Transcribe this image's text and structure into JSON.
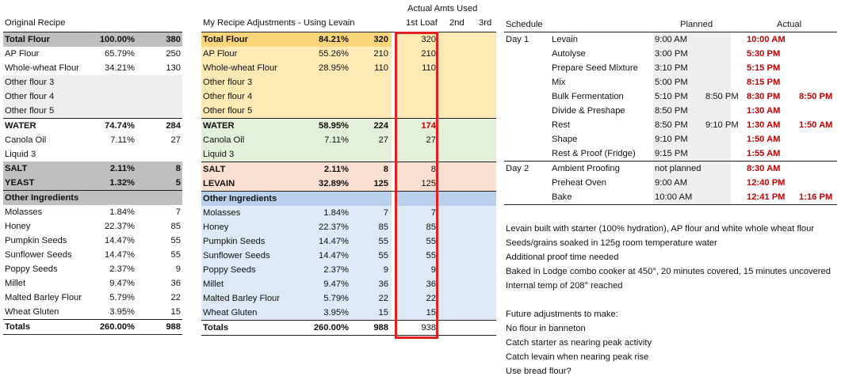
{
  "original": {
    "title": "Original Recipe",
    "rows": [
      {
        "name": "Total Flour",
        "pct": "100.00%",
        "amt": "380",
        "style": "header-gray"
      },
      {
        "name": "AP Flour",
        "pct": "65.79%",
        "amt": "250",
        "style": "normal"
      },
      {
        "name": "Whole-wheat Flour",
        "pct": "34.21%",
        "amt": "130",
        "style": "normal"
      },
      {
        "name": "Other flour 3",
        "pct": "",
        "amt": "",
        "style": "light"
      },
      {
        "name": "Other flour 4",
        "pct": "",
        "amt": "",
        "style": "light"
      },
      {
        "name": "Other flour 5",
        "pct": "",
        "amt": "",
        "style": "light"
      },
      {
        "name": "WATER",
        "pct": "74.74%",
        "amt": "284",
        "style": "bold"
      },
      {
        "name": "Canola Oil",
        "pct": "7.11%",
        "amt": "27",
        "style": "normal"
      },
      {
        "name": "Liquid 3",
        "pct": "",
        "amt": "",
        "style": "normal"
      },
      {
        "name": "SALT",
        "pct": "2.11%",
        "amt": "8",
        "style": "section-gray"
      },
      {
        "name": "YEAST",
        "pct": "1.32%",
        "amt": "5",
        "style": "section-gray"
      },
      {
        "name": "Other Ingredients",
        "pct": "",
        "amt": "",
        "style": "header-gray"
      },
      {
        "name": "Molasses",
        "pct": "1.84%",
        "amt": "7",
        "style": "normal"
      },
      {
        "name": "Honey",
        "pct": "22.37%",
        "amt": "85",
        "style": "normal"
      },
      {
        "name": "Pumpkin Seeds",
        "pct": "14.47%",
        "amt": "55",
        "style": "normal"
      },
      {
        "name": "Sunflower Seeds",
        "pct": "14.47%",
        "amt": "55",
        "style": "normal"
      },
      {
        "name": "Poppy Seeds",
        "pct": "2.37%",
        "amt": "9",
        "style": "normal"
      },
      {
        "name": "Millet",
        "pct": "9.47%",
        "amt": "36",
        "style": "normal"
      },
      {
        "name": "Malted Barley Flour",
        "pct": "5.79%",
        "amt": "22",
        "style": "normal"
      },
      {
        "name": "Wheat Gluten",
        "pct": "3.95%",
        "amt": "15",
        "style": "normal"
      },
      {
        "name": "Totals",
        "pct": "260.00%",
        "amt": "988",
        "style": "total"
      }
    ]
  },
  "adjusted": {
    "title": "My Recipe Adjustments - Using Levain",
    "actual_title": "Actual Amts Used",
    "loaf_headers": [
      "1st Loaf",
      "2nd",
      "3rd"
    ],
    "rows": [
      {
        "name": "Total Flour",
        "pct": "84.21%",
        "amt": "320",
        "actual": "320",
        "band": "flour",
        "style": "header"
      },
      {
        "name": "AP Flour",
        "pct": "55.26%",
        "amt": "210",
        "actual": "210",
        "band": "flour",
        "style": "normal"
      },
      {
        "name": "Whole-wheat Flour",
        "pct": "28.95%",
        "amt": "110",
        "actual": "110",
        "band": "flour",
        "style": "normal"
      },
      {
        "name": "Other flour 3",
        "pct": "",
        "amt": "",
        "actual": "",
        "band": "flour",
        "style": "normal"
      },
      {
        "name": "Other flour 4",
        "pct": "",
        "amt": "",
        "actual": "",
        "band": "flour",
        "style": "normal"
      },
      {
        "name": "Other flour 5",
        "pct": "",
        "amt": "",
        "actual": "",
        "band": "flour",
        "style": "normal"
      },
      {
        "name": "WATER",
        "pct": "58.95%",
        "amt": "224",
        "actual": "174",
        "actual_red": true,
        "band": "water",
        "style": "bold"
      },
      {
        "name": "Canola Oil",
        "pct": "7.11%",
        "amt": "27",
        "actual": "27",
        "band": "water",
        "style": "normal"
      },
      {
        "name": "Liquid 3",
        "pct": "",
        "amt": "",
        "actual": "",
        "band": "water",
        "style": "normal"
      },
      {
        "name": "SALT",
        "pct": "2.11%",
        "amt": "8",
        "actual": "8",
        "band": "salt",
        "style": "section"
      },
      {
        "name": "LEVAIN",
        "pct": "32.89%",
        "amt": "125",
        "actual": "125",
        "band": "salt",
        "style": "section"
      },
      {
        "name": "Other Ingredients",
        "pct": "",
        "amt": "",
        "actual": "",
        "band": "otherhead",
        "style": "header"
      },
      {
        "name": "Molasses",
        "pct": "1.84%",
        "amt": "7",
        "actual": "7",
        "band": "other",
        "style": "normal"
      },
      {
        "name": "Honey",
        "pct": "22.37%",
        "amt": "85",
        "actual": "85",
        "band": "other",
        "style": "normal"
      },
      {
        "name": "Pumpkin Seeds",
        "pct": "14.47%",
        "amt": "55",
        "actual": "55",
        "band": "other",
        "style": "normal"
      },
      {
        "name": "Sunflower Seeds",
        "pct": "14.47%",
        "amt": "55",
        "actual": "55",
        "band": "other",
        "style": "normal"
      },
      {
        "name": "Poppy Seeds",
        "pct": "2.37%",
        "amt": "9",
        "actual": "9",
        "band": "other",
        "style": "normal"
      },
      {
        "name": "Millet",
        "pct": "9.47%",
        "amt": "36",
        "actual": "36",
        "band": "other",
        "style": "normal"
      },
      {
        "name": "Malted Barley Flour",
        "pct": "5.79%",
        "amt": "22",
        "actual": "22",
        "band": "other",
        "style": "normal"
      },
      {
        "name": "Wheat Gluten",
        "pct": "3.95%",
        "amt": "15",
        "actual": "15",
        "band": "other",
        "style": "normal"
      },
      {
        "name": "Totals",
        "pct": "260.00%",
        "amt": "988",
        "actual": "938",
        "band": "total",
        "style": "total"
      }
    ]
  },
  "schedule": {
    "title": "Schedule",
    "planned_label": "Planned",
    "actual_label": "Actual",
    "rows": [
      {
        "day": "Day 1",
        "step": "Levain",
        "planned": "9:00 AM",
        "planned2": "",
        "actual": "10:00 AM",
        "actual2": ""
      },
      {
        "day": "",
        "step": "Autolyse",
        "planned": "3:00 PM",
        "planned2": "",
        "actual": "5:30 PM",
        "actual2": ""
      },
      {
        "day": "",
        "step": "Prepare Seed Mixture",
        "planned": "3:10 PM",
        "planned2": "",
        "actual": "5:15 PM",
        "actual2": ""
      },
      {
        "day": "",
        "step": "Mix",
        "planned": "5:00 PM",
        "planned2": "",
        "actual": "8:15 PM",
        "actual2": ""
      },
      {
        "day": "",
        "step": "Bulk Fermentation",
        "planned": "5:10 PM",
        "planned2": "8:50 PM",
        "actual": "8:30 PM",
        "actual2": "8:50 PM"
      },
      {
        "day": "",
        "step": "Divide & Preshape",
        "planned": "8:50 PM",
        "planned2": "",
        "actual": "1:30 AM",
        "actual2": ""
      },
      {
        "day": "",
        "step": "Rest",
        "planned": "8:50 PM",
        "planned2": "9:10 PM",
        "actual": "1:30 AM",
        "actual2": "1:50 AM"
      },
      {
        "day": "",
        "step": "Shape",
        "planned": "9:10 PM",
        "planned2": "",
        "actual": "1:50 AM",
        "actual2": ""
      },
      {
        "day": "",
        "step": "Rest & Proof (Fridge)",
        "planned": "9:15 PM",
        "planned2": "",
        "actual": "1:55 AM",
        "actual2": ""
      },
      {
        "day": "Day 2",
        "step": "Ambient Proofing",
        "planned": "not planned",
        "planned2": "",
        "actual": "8:30 AM",
        "actual2": ""
      },
      {
        "day": "",
        "step": "Preheat Oven",
        "planned": "9:00 AM",
        "planned2": "",
        "actual": "12:40 PM",
        "actual2": ""
      },
      {
        "day": "",
        "step": "Bake",
        "planned": "10:00 AM",
        "planned2": "",
        "actual": "12:41 PM",
        "actual2": "1:16 PM"
      }
    ]
  },
  "notes": [
    "Levain built with starter (100% hydration), AP flour and white whole wheat flour",
    "Seeds/grains soaked in 125g room temperature water",
    "Additional proof time needed",
    "Baked in Lodge combo cooker at 450°, 20 minutes covered, 15 minutes uncovered",
    "Internal temp of 208° reached"
  ],
  "future": {
    "title": "Future adjustments to make:",
    "items": [
      "No flour in banneton",
      "Catch starter as nearing peak activity",
      "Catch levain when nearing peak rise",
      "Use bread flour?"
    ]
  },
  "colors": {
    "gray_dark": "#bfbfbf",
    "gray_light": "#eeeeee",
    "flour": "#fde9b4",
    "flour_head": "#fbd57a",
    "water": "#e3efd9",
    "salt": "#fbe0d2",
    "other": "#dde9f6",
    "other_head": "#b8d0ec",
    "red": "#c00000",
    "highlight_box": "#e02020"
  }
}
